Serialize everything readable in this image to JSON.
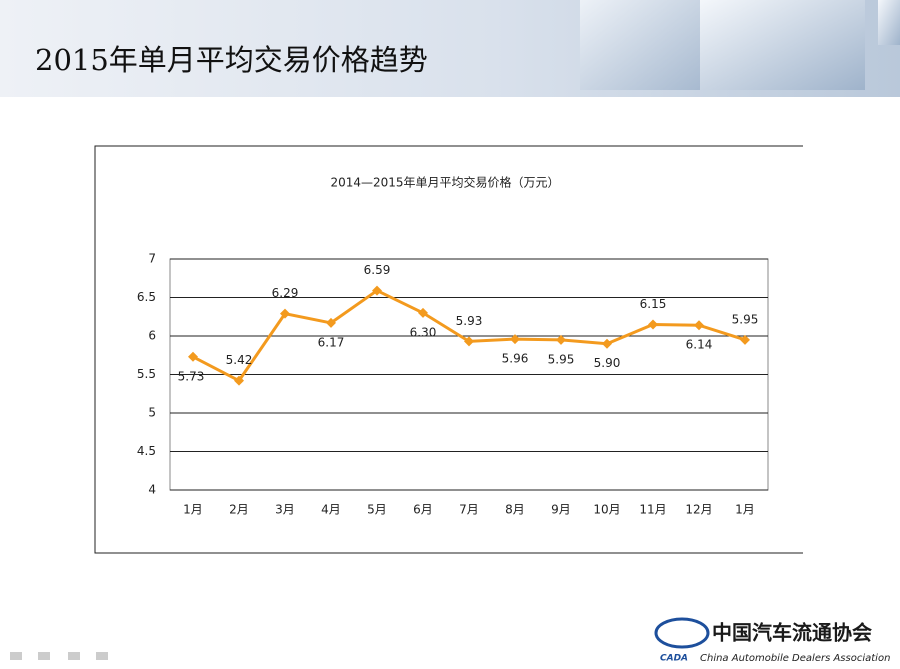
{
  "slide": {
    "title": "2015年单月平均交易价格趋势",
    "logo": {
      "name": "中国汽车流通协会",
      "abbr": "CADA",
      "english": "China Automobile Dealers Association"
    }
  },
  "chart_data": {
    "type": "line",
    "title": "2014—2015年单月平均交易价格（万元）",
    "categories": [
      "1月",
      "2月",
      "3月",
      "4月",
      "5月",
      "6月",
      "7月",
      "8月",
      "9月",
      "10月",
      "11月",
      "12月",
      "1月"
    ],
    "values": [
      5.73,
      5.42,
      6.29,
      6.17,
      6.59,
      6.3,
      5.93,
      5.96,
      5.95,
      5.9,
      6.15,
      6.14,
      5.95
    ],
    "value_labels": [
      "5.73",
      "5.42",
      "6.29",
      "6.17",
      "6.59",
      "6.30",
      "5.93",
      "5.96",
      "5.95",
      "5.90",
      "6.15",
      "6.14",
      "5.95"
    ],
    "color": "#f39a1e",
    "ylim": [
      4,
      7
    ],
    "yticks": [
      4,
      4.5,
      5,
      5.5,
      6,
      6.5,
      7
    ],
    "grid": true
  }
}
